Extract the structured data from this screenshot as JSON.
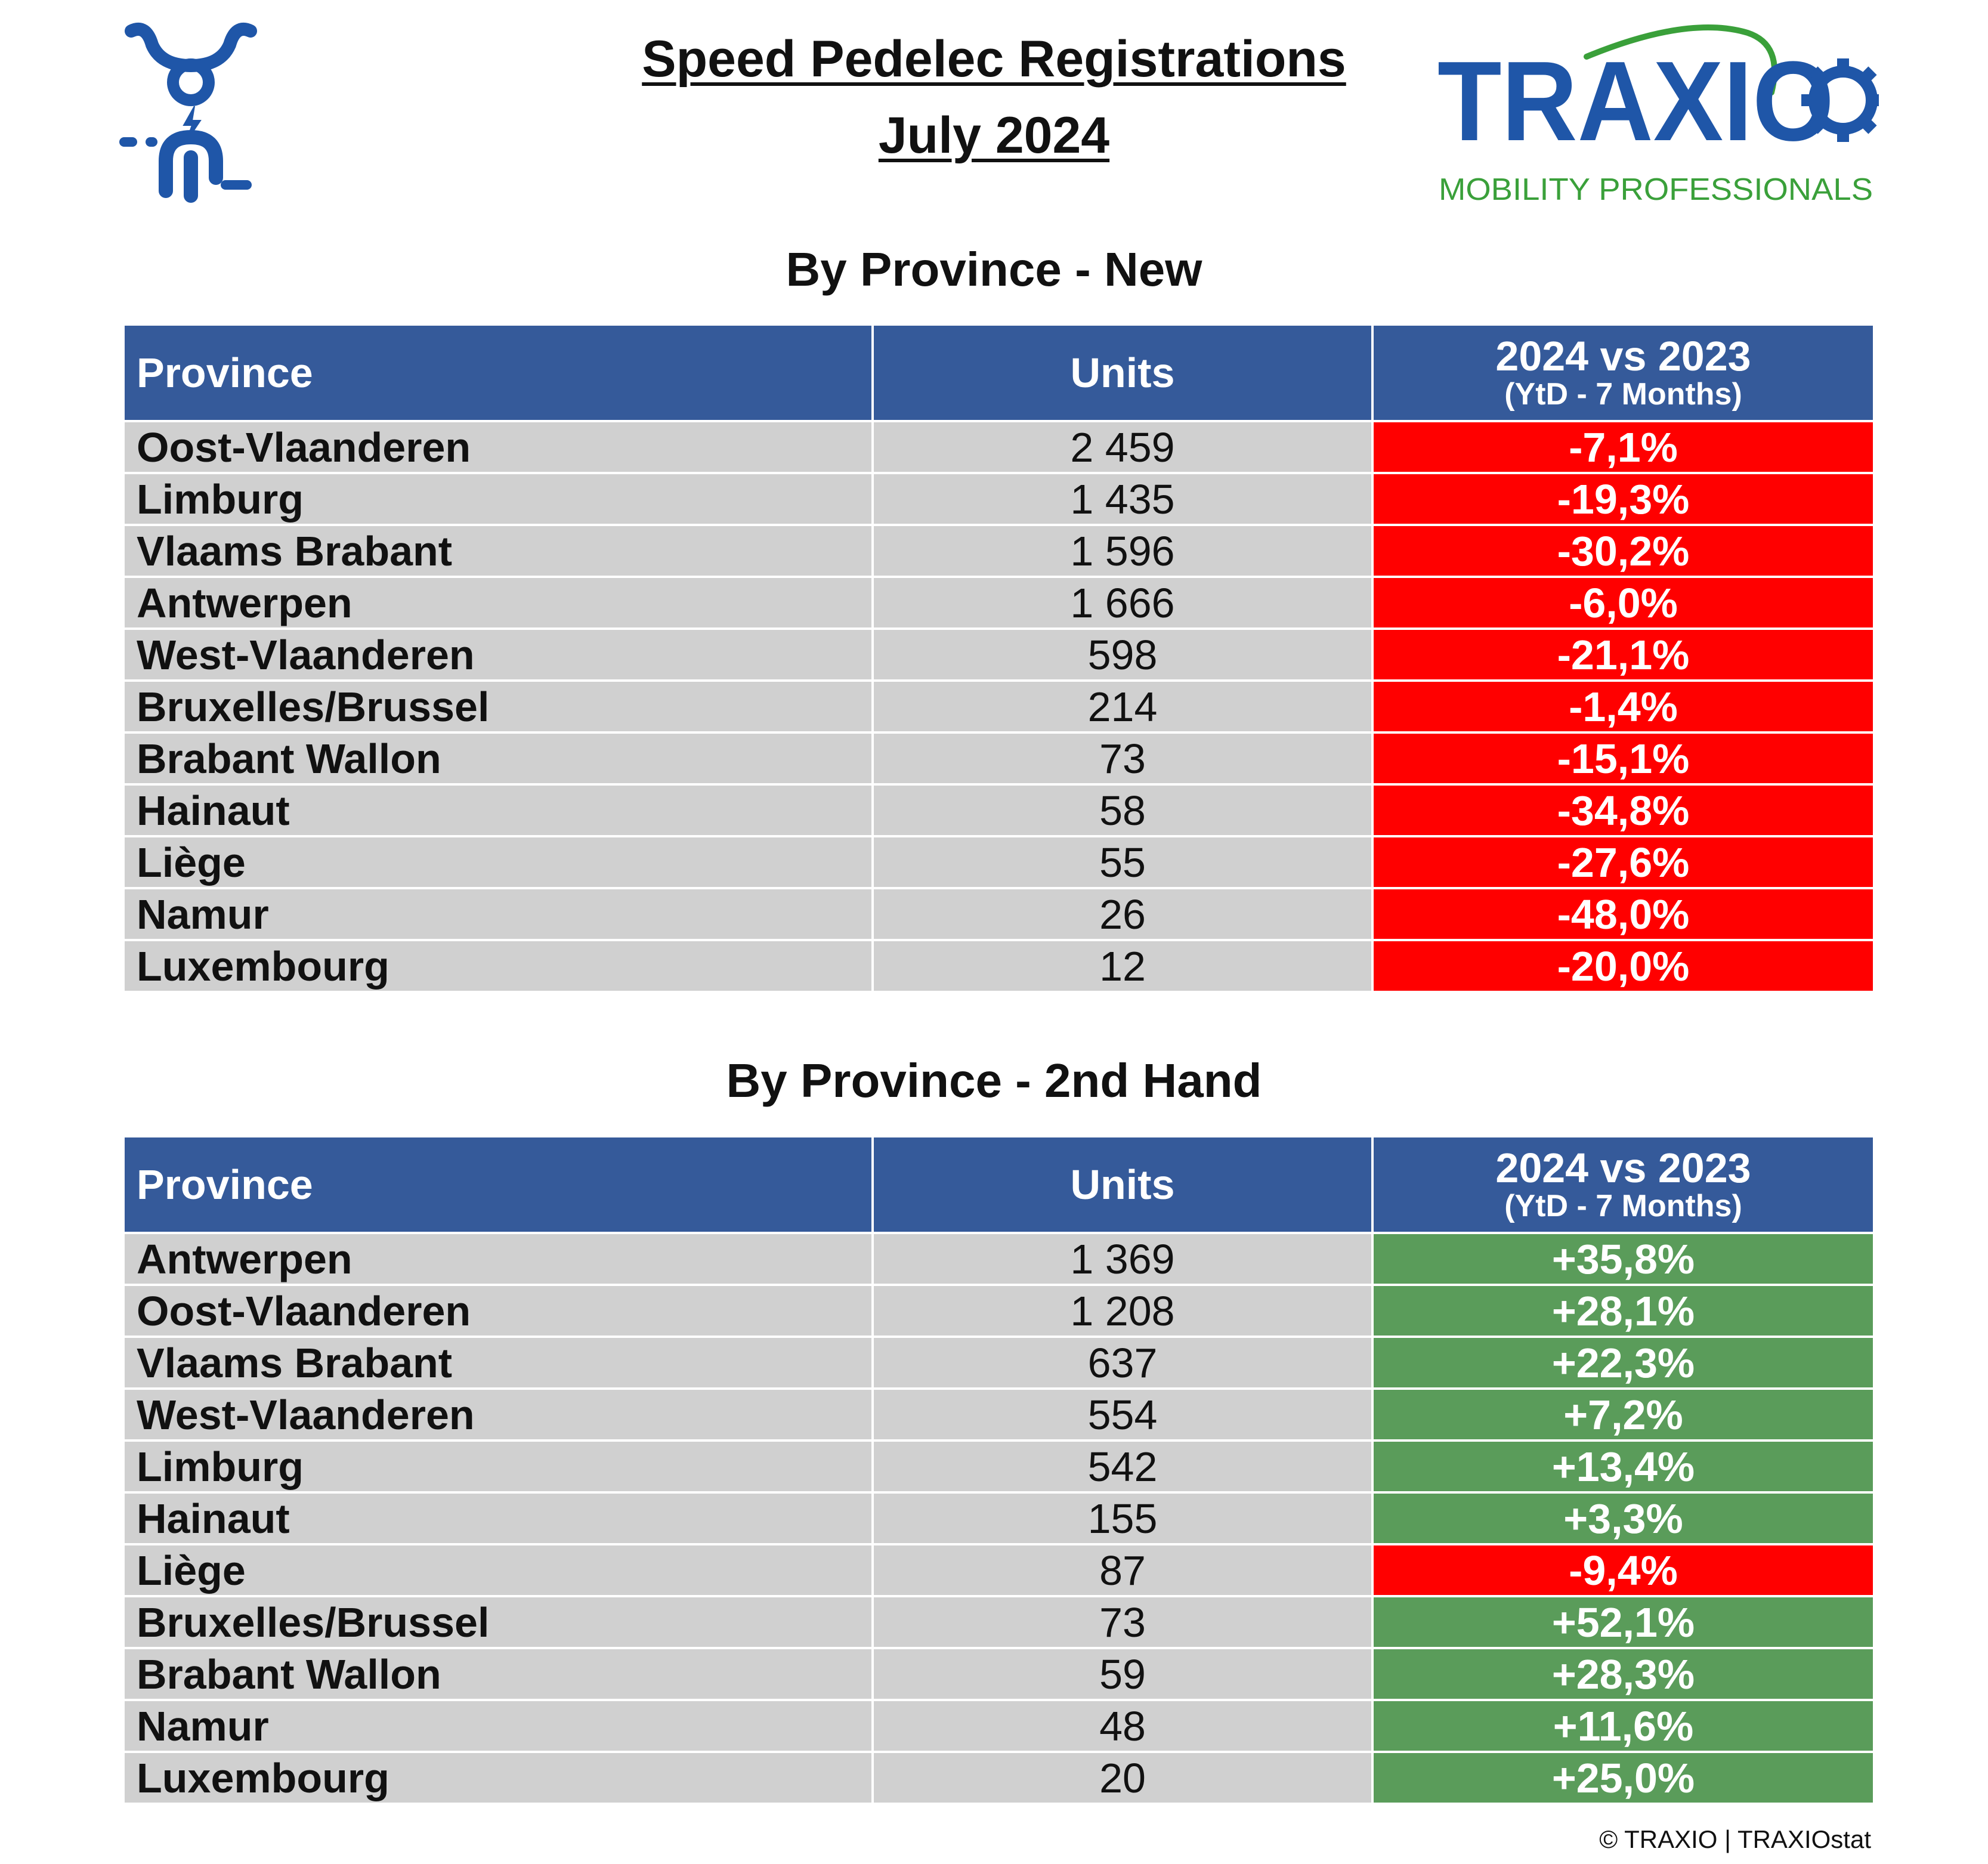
{
  "header": {
    "title_line1": "Speed Pedelec Registrations",
    "title_line2": "July 2024"
  },
  "logo": {
    "icon": "speed-pedelec-rider-icon",
    "icon_color": "#1f56a8",
    "brand_name": "TRAXIO",
    "tagline": "MOBILITY PROFESSIONALS",
    "brand_color": "#1f56a8",
    "tagline_color": "#3aa03a"
  },
  "colors": {
    "header_bg": "#355a9a",
    "row_bg": "#d0d0d0",
    "negative": "#ff0000",
    "positive": "#5a9c5a"
  },
  "columns": {
    "province": "Province",
    "units": "Units",
    "comparison": "2024 vs 2023",
    "comparison_sub": "(YtD - 7 Months)"
  },
  "sections": [
    {
      "title": "By Province - New",
      "rows": [
        {
          "province": "Oost-Vlaanderen",
          "units": "2 459",
          "change": "-7,1%",
          "trend": "neg"
        },
        {
          "province": "Limburg",
          "units": "1 435",
          "change": "-19,3%",
          "trend": "neg"
        },
        {
          "province": "Vlaams Brabant",
          "units": "1 596",
          "change": "-30,2%",
          "trend": "neg"
        },
        {
          "province": "Antwerpen",
          "units": "1 666",
          "change": "-6,0%",
          "trend": "neg"
        },
        {
          "province": "West-Vlaanderen",
          "units": "598",
          "change": "-21,1%",
          "trend": "neg"
        },
        {
          "province": "Bruxelles/Brussel",
          "units": "214",
          "change": "-1,4%",
          "trend": "neg"
        },
        {
          "province": "Brabant Wallon",
          "units": "73",
          "change": "-15,1%",
          "trend": "neg"
        },
        {
          "province": "Hainaut",
          "units": "58",
          "change": "-34,8%",
          "trend": "neg"
        },
        {
          "province": "Liège",
          "units": "55",
          "change": "-27,6%",
          "trend": "neg"
        },
        {
          "province": "Namur",
          "units": "26",
          "change": "-48,0%",
          "trend": "neg"
        },
        {
          "province": "Luxembourg",
          "units": "12",
          "change": "-20,0%",
          "trend": "neg"
        }
      ]
    },
    {
      "title": "By Province - 2nd Hand",
      "rows": [
        {
          "province": "Antwerpen",
          "units": "1 369",
          "change": "+35,8%",
          "trend": "pos"
        },
        {
          "province": "Oost-Vlaanderen",
          "units": "1 208",
          "change": "+28,1%",
          "trend": "pos"
        },
        {
          "province": "Vlaams Brabant",
          "units": "637",
          "change": "+22,3%",
          "trend": "pos"
        },
        {
          "province": "West-Vlaanderen",
          "units": "554",
          "change": "+7,2%",
          "trend": "pos"
        },
        {
          "province": "Limburg",
          "units": "542",
          "change": "+13,4%",
          "trend": "pos"
        },
        {
          "province": "Hainaut",
          "units": "155",
          "change": "+3,3%",
          "trend": "pos"
        },
        {
          "province": "Liège",
          "units": "87",
          "change": "-9,4%",
          "trend": "neg"
        },
        {
          "province": "Bruxelles/Brussel",
          "units": "73",
          "change": "+52,1%",
          "trend": "pos"
        },
        {
          "province": "Brabant Wallon",
          "units": "59",
          "change": "+28,3%",
          "trend": "pos"
        },
        {
          "province": "Namur",
          "units": "48",
          "change": "+11,6%",
          "trend": "pos"
        },
        {
          "province": "Luxembourg",
          "units": "20",
          "change": "+25,0%",
          "trend": "pos"
        }
      ]
    }
  ],
  "footer": {
    "copyright": "© TRAXIO | TRAXIOstat"
  }
}
